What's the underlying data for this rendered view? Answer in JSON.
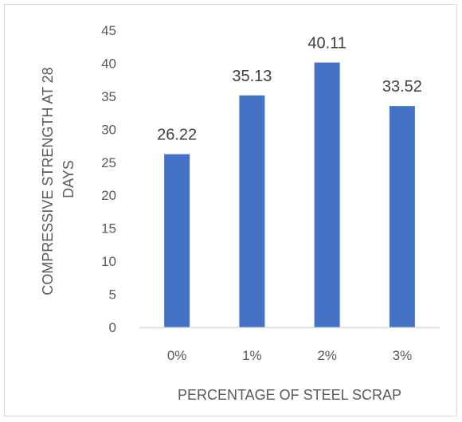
{
  "chart_data": {
    "type": "bar",
    "categories": [
      "0%",
      "1%",
      "2%",
      "3%"
    ],
    "values": [
      26.22,
      35.13,
      40.11,
      33.52
    ],
    "data_labels": [
      "26.22",
      "35.13",
      "40.11",
      "33.52"
    ],
    "title": "",
    "xlabel": "PERCENTAGE OF STEEL SCRAP",
    "ylabel_lines": [
      "COMPRESSIVE STRENGTH AT 28",
      "DAYS"
    ],
    "ylim": [
      0,
      45
    ],
    "yticks": [
      0,
      5,
      10,
      15,
      20,
      25,
      30,
      35,
      40,
      45
    ],
    "grid": false,
    "legend": "none",
    "bar_color": "#4472C4"
  }
}
